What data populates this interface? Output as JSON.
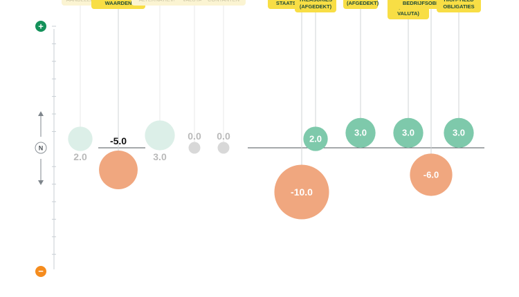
{
  "chart_data": {
    "type": "bubble",
    "title": "",
    "xlabel": "",
    "ylabel": "",
    "y_axis_markers": {
      "top": "+",
      "middle": "N",
      "bottom": "−"
    },
    "colors": {
      "positive": "#7ec9ab",
      "negative": "#f0a77f",
      "neutral": "#d8d8d8",
      "positive_faded": "#dcefe8",
      "label_bg": "#f8de45",
      "label_bg_faded": "#fbf4d2",
      "plus_icon": "#14915a",
      "minus_icon": "#f58c1e"
    },
    "groups": [
      {
        "name": "main",
        "items": [
          {
            "label": "AANDELEN",
            "value": 2.0,
            "value_text": "2.0",
            "faded": true
          },
          {
            "label": "VASTRENTENDE WAARDEN",
            "value": -5.0,
            "value_text": "-5.0",
            "faded": false
          },
          {
            "label": "ALTERNATIEVEN",
            "value": 3.0,
            "value_text": "3.0",
            "faded": true
          },
          {
            "label": "VALUTA'S",
            "value": 0.0,
            "value_text": "0.0",
            "faded": true
          },
          {
            "label": "CONTANTEN",
            "value": 0.0,
            "value_text": "0.0",
            "faded": true
          }
        ]
      },
      {
        "name": "fixed-income",
        "items": [
          {
            "label": "EUROPESE STAATSOBLIGATIES",
            "value": -10.0,
            "value_text": "-10.0",
            "faded": false
          },
          {
            "label": "US TREASURIES (AFGEDEKT)",
            "value": 2.0,
            "value_text": "2.0",
            "faded": false
          },
          {
            "label": "US TIPS (AFGEDEKT)",
            "value": 3.0,
            "value_text": "3.0",
            "faded": false
          },
          {
            "label": "OBLIGATIES OPKOMENDE MARKTEN (HARDE VALUTA)",
            "value": 3.0,
            "value_text": "3.0",
            "faded": false
          },
          {
            "label": "EUROPESE BEDRIJFSOBLIGATIES",
            "value": -6.0,
            "value_text": "-6.0",
            "faded": false
          },
          {
            "label": "EUROPESE HIGH-YIELD OBLIGATIES",
            "value": 3.0,
            "value_text": "3.0",
            "faded": false
          }
        ]
      }
    ]
  }
}
